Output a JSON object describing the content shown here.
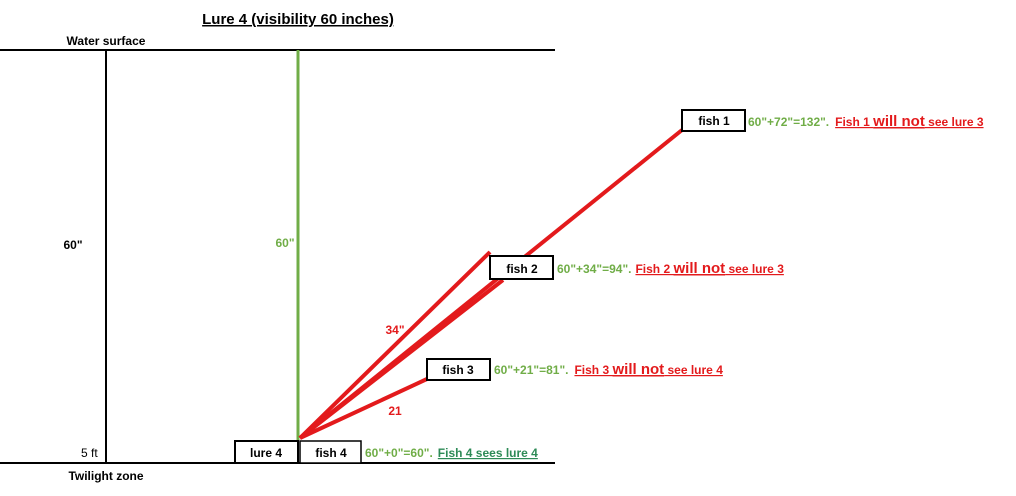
{
  "title": "Lure 4  (visibility 60 inches)",
  "labels": {
    "water_surface": "Water surface",
    "twilight_zone": "Twilight zone",
    "depth_left": "60\"",
    "depth_right": "5  ft",
    "visibility_line": "60\"",
    "dist_34": "34\"",
    "dist_21": "21"
  },
  "boxes": {
    "lure4": "lure 4",
    "fish1": "fish 1",
    "fish2": "fish 2",
    "fish3": "fish 3",
    "fish4": "fish 4"
  },
  "annotations": {
    "fish1": {
      "calc": "60\"+72\"=132\".",
      "pre": "Fish 1 ",
      "emph": "will not",
      "post": " see lure 3"
    },
    "fish2": {
      "calc": "60\"+34\"=94\".",
      "pre": "Fish 2 ",
      "emph": "will not",
      "post": " see lure 3"
    },
    "fish3": {
      "calc": "60\"+21\"=81\".",
      "pre": "Fish 3 ",
      "emph": "will not",
      "post": " see lure 4"
    },
    "fish4": {
      "calc": "60\"+0\"=60\".",
      "text": "Fish 4 sees lure 4"
    }
  },
  "colors": {
    "green_line": "#70ad47",
    "red_line": "#e31a1c",
    "dark_green_text": "#2e8b57",
    "black": "#000000"
  }
}
